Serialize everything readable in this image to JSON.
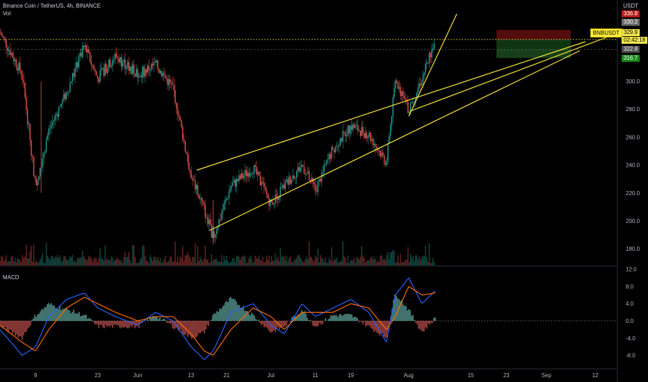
{
  "header": {
    "symbol_line": "Binance Coin / TetherUS, 4h, BINANCE",
    "volume_label": "Vol",
    "macd_label": "MACD"
  },
  "price_axis": {
    "unit": "USDT",
    "ticks": [
      "300.0",
      "280.0",
      "260.0",
      "240.0",
      "220.0",
      "200.0",
      "180.0"
    ]
  },
  "macd_axis": {
    "ticks": [
      "12.0",
      "8.0",
      "4.0",
      "0.0",
      "-4.0",
      "-8.0"
    ]
  },
  "time_axis": {
    "labels": [
      "9",
      "23",
      "Jun",
      "13",
      "21",
      "Jul",
      "11",
      "19",
      "Aug",
      "15",
      "23",
      "Sep",
      "12"
    ]
  },
  "tags": {
    "target_top": "336.8",
    "target": "330.2",
    "current": "329.9",
    "countdown": "02:42:18",
    "entry": "322.8",
    "stop": "316.7",
    "ticker": "BNBUSDT"
  },
  "colors": {
    "up": "#26a69a",
    "down": "#ef5350",
    "trendline": "#ffeb3b",
    "macd_line": "#2962ff",
    "signal_line": "#ff6d00"
  },
  "chart_data": [
    {
      "type": "line",
      "title": "Binance Coin / TetherUS, 4h, BINANCE",
      "ylabel": "USDT",
      "ylim": [
        170,
        338
      ],
      "x": [
        "2021-05-01",
        "2021-05-06",
        "2021-05-09",
        "2021-05-12",
        "2021-05-16",
        "2021-05-20",
        "2021-05-23",
        "2021-05-27",
        "2021-06-01",
        "2021-06-05",
        "2021-06-09",
        "2021-06-13",
        "2021-06-16",
        "2021-06-18",
        "2021-06-22",
        "2021-06-27",
        "2021-07-01",
        "2021-07-04",
        "2021-07-08",
        "2021-07-11",
        "2021-07-15",
        "2021-07-19",
        "2021-07-23",
        "2021-07-27",
        "2021-07-29",
        "2021-08-01",
        "2021-08-04",
        "2021-08-07"
      ],
      "series": [
        {
          "values": [
            335,
            305,
            225,
            265,
            292,
            325,
            302,
            318,
            305,
            312,
            295,
            232,
            208,
            188,
            225,
            238,
            212,
            225,
            240,
            222,
            252,
            268,
            262,
            242,
            300,
            280,
            302,
            330
          ]
        }
      ],
      "annotations": {
        "current_price": 329.9,
        "target_zone": [
          322.8,
          336.8
        ],
        "stop_zone": [
          316.7,
          322.8
        ]
      }
    },
    {
      "type": "line",
      "title": "MACD",
      "ylim": [
        -10.5,
        12.5
      ],
      "x": [
        "2021-05-01",
        "2021-05-06",
        "2021-05-09",
        "2021-05-12",
        "2021-05-16",
        "2021-05-20",
        "2021-05-23",
        "2021-05-27",
        "2021-06-01",
        "2021-06-05",
        "2021-06-09",
        "2021-06-13",
        "2021-06-16",
        "2021-06-18",
        "2021-06-22",
        "2021-06-27",
        "2021-07-01",
        "2021-07-04",
        "2021-07-08",
        "2021-07-11",
        "2021-07-15",
        "2021-07-19",
        "2021-07-23",
        "2021-07-27",
        "2021-07-29",
        "2021-08-01",
        "2021-08-04",
        "2021-08-07"
      ],
      "series": [
        {
          "values": [
            -2,
            -8,
            -6,
            1,
            5,
            6.5,
            3,
            1,
            -1,
            2,
            0,
            -6,
            -9,
            -7,
            2,
            4,
            -1,
            -3,
            4,
            1,
            3,
            5,
            2,
            -5,
            6,
            10,
            4,
            7
          ]
        },
        {
          "values": [
            -1,
            -5,
            -7,
            -2,
            3,
            5.5,
            4,
            2,
            0,
            1,
            1,
            -3,
            -7,
            -8,
            -2,
            3,
            1,
            -2,
            2,
            2,
            2,
            4,
            3,
            -2,
            1,
            8,
            6,
            6.5
          ]
        }
      ]
    }
  ]
}
